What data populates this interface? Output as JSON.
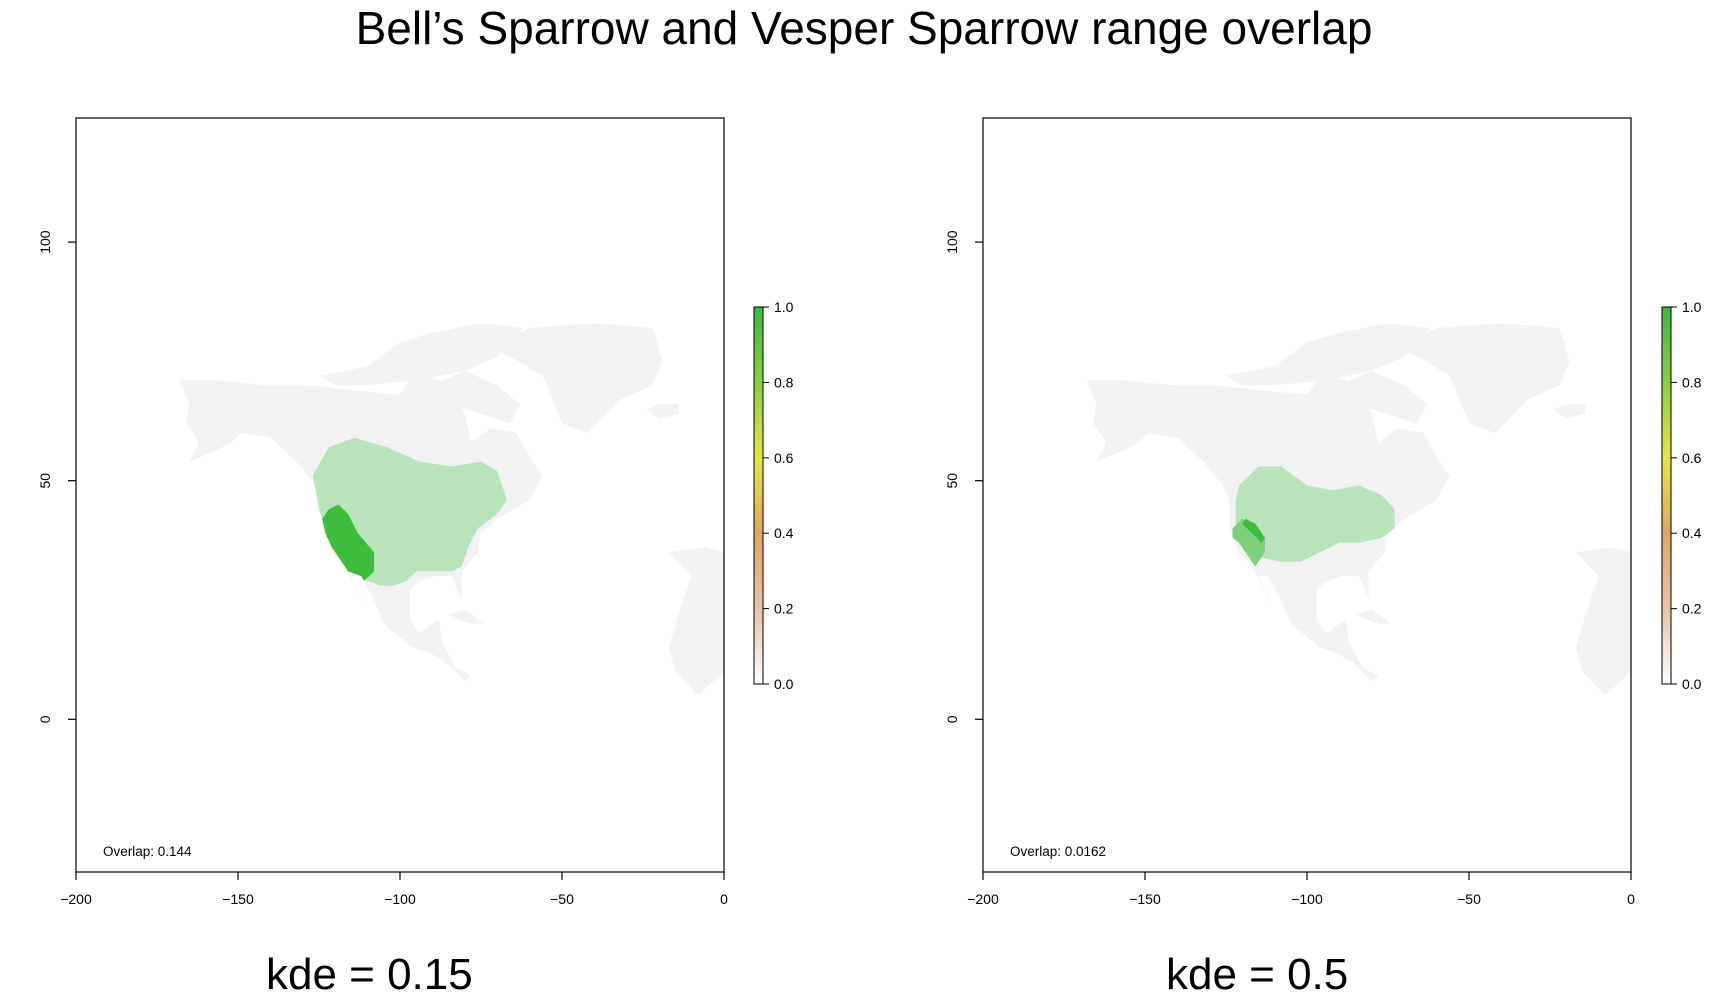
{
  "title": "Bell’s Sparrow and Vesper Sparrow range overlap",
  "colors": {
    "background_land": "#f2f2f2",
    "low_overlap_green": "#b9e4bb",
    "mid_overlap_green": "#7ed07f",
    "high_overlap_green": "#3fbb3f",
    "colorbar_stops": [
      "#ffffff",
      "#e8c2a9",
      "#e0a562",
      "#e6e545",
      "#8ccc47",
      "#3fb73f"
    ]
  },
  "chart_data": [
    {
      "type": "heatmap",
      "caption": "kde = 0.15",
      "annotation": "Overlap: 0.144",
      "xlim": [
        -200,
        0
      ],
      "ylim": [
        -32,
        126
      ],
      "x_ticks": [
        -200,
        -150,
        -100,
        -50,
        0
      ],
      "x_tick_labels": [
        "−200",
        "−150",
        "−100",
        "−50",
        "0"
      ],
      "y_ticks": [
        0,
        50,
        100
      ],
      "y_tick_labels": [
        "0",
        "50",
        "100"
      ],
      "colorbar": {
        "range": [
          0,
          1
        ],
        "ticks": [
          0.0,
          0.2,
          0.4,
          0.6,
          0.8,
          1.0
        ],
        "tick_labels": [
          "0.0",
          "0.2",
          "0.4",
          "0.6",
          "0.8",
          "1.0"
        ]
      },
      "regions": [
        {
          "value": 0.3,
          "polygon": [
            [
              -127,
              51
            ],
            [
              -122,
              57
            ],
            [
              -114,
              59
            ],
            [
              -104,
              57
            ],
            [
              -94,
              54
            ],
            [
              -84,
              53
            ],
            [
              -75,
              54
            ],
            [
              -70,
              52
            ],
            [
              -67,
              46
            ],
            [
              -70,
              43
            ],
            [
              -76,
              40
            ],
            [
              -79,
              36
            ],
            [
              -81,
              32
            ],
            [
              -84,
              31
            ],
            [
              -90,
              31
            ],
            [
              -95,
              31
            ],
            [
              -98,
              29
            ],
            [
              -102,
              28
            ],
            [
              -106,
              28
            ],
            [
              -110,
              29
            ],
            [
              -114,
              33
            ],
            [
              -119,
              36
            ],
            [
              -123,
              40
            ],
            [
              -125,
              44
            ],
            [
              -126,
              48
            ]
          ]
        },
        {
          "value": 0.9,
          "polygon": [
            [
              -124,
              42
            ],
            [
              -122,
              44
            ],
            [
              -119,
              45
            ],
            [
              -116,
              43
            ],
            [
              -113,
              39
            ],
            [
              -108,
              35
            ],
            [
              -108,
              31
            ],
            [
              -111,
              29
            ],
            [
              -112,
              30
            ],
            [
              -116,
              31
            ],
            [
              -119,
              34
            ],
            [
              -121,
              36
            ],
            [
              -123,
              39
            ]
          ]
        }
      ]
    },
    {
      "type": "heatmap",
      "caption": "kde = 0.5",
      "annotation": "Overlap: 0.0162",
      "xlim": [
        -200,
        0
      ],
      "ylim": [
        -32,
        126
      ],
      "x_ticks": [
        -200,
        -150,
        -100,
        -50,
        0
      ],
      "x_tick_labels": [
        "−200",
        "−150",
        "−100",
        "−50",
        "0"
      ],
      "y_ticks": [
        0,
        50,
        100
      ],
      "y_tick_labels": [
        "0",
        "50",
        "100"
      ],
      "colorbar": {
        "range": [
          0,
          1
        ],
        "ticks": [
          0.0,
          0.2,
          0.4,
          0.6,
          0.8,
          1.0
        ],
        "tick_labels": [
          "0.0",
          "0.2",
          "0.4",
          "0.6",
          "0.8",
          "1.0"
        ]
      },
      "regions": [
        {
          "value": 0.3,
          "polygon": [
            [
              -121,
              49
            ],
            [
              -115,
              53
            ],
            [
              -108,
              53
            ],
            [
              -100,
              49
            ],
            [
              -92,
              48
            ],
            [
              -84,
              49
            ],
            [
              -77,
              47
            ],
            [
              -73,
              44
            ],
            [
              -73,
              40
            ],
            [
              -77,
              38
            ],
            [
              -84,
              37
            ],
            [
              -90,
              37
            ],
            [
              -96,
              35
            ],
            [
              -102,
              33
            ],
            [
              -108,
              33
            ],
            [
              -115,
              34
            ],
            [
              -119,
              37
            ],
            [
              -122,
              41
            ],
            [
              -122,
              46
            ]
          ]
        },
        {
          "value": 0.6,
          "polygon": [
            [
              -123,
              40
            ],
            [
              -120,
              42
            ],
            [
              -117,
              41
            ],
            [
              -113,
              38
            ],
            [
              -113,
              35
            ],
            [
              -116,
              32
            ],
            [
              -118,
              34
            ],
            [
              -121,
              37
            ],
            [
              -123,
              38
            ]
          ]
        },
        {
          "value": 0.9,
          "polygon": [
            [
              -119,
              42
            ],
            [
              -116,
              41
            ],
            [
              -113,
              38
            ],
            [
              -114,
              37
            ],
            [
              -117,
              39
            ],
            [
              -120,
              41
            ]
          ]
        }
      ]
    }
  ],
  "land_polygons": [
    {
      "name": "north-america-mainland",
      "polygon": [
        [
          -168,
          71
        ],
        [
          -157,
          71
        ],
        [
          -141,
          70
        ],
        [
          -128,
          70
        ],
        [
          -115,
          69
        ],
        [
          -100,
          68
        ],
        [
          -95,
          73
        ],
        [
          -85,
          70
        ],
        [
          -80,
          64
        ],
        [
          -78,
          58
        ],
        [
          -72,
          61
        ],
        [
          -64,
          60
        ],
        [
          -60,
          55
        ],
        [
          -56,
          51
        ],
        [
          -60,
          46
        ],
        [
          -65,
          44
        ],
        [
          -70,
          42
        ],
        [
          -75,
          39
        ],
        [
          -76,
          35
        ],
        [
          -81,
          31
        ],
        [
          -81,
          25
        ],
        [
          -84,
          30
        ],
        [
          -89,
          30
        ],
        [
          -94,
          29
        ],
        [
          -97,
          27
        ],
        [
          -97,
          21
        ],
        [
          -94,
          18
        ],
        [
          -88,
          21
        ],
        [
          -87,
          16
        ],
        [
          -83,
          11
        ],
        [
          -78,
          9
        ],
        [
          -80,
          8
        ],
        [
          -86,
          12
        ],
        [
          -91,
          14
        ],
        [
          -96,
          15
        ],
        [
          -105,
          20
        ],
        [
          -108,
          25
        ],
        [
          -112,
          30
        ],
        [
          -115,
          30
        ],
        [
          -110,
          23
        ],
        [
          -117,
          32
        ],
        [
          -121,
          35
        ],
        [
          -124,
          40
        ],
        [
          -124,
          46
        ],
        [
          -126,
          49
        ],
        [
          -132,
          54
        ],
        [
          -140,
          59
        ],
        [
          -149,
          60
        ],
        [
          -152,
          58
        ],
        [
          -158,
          56
        ],
        [
          -165,
          54
        ],
        [
          -162,
          58
        ],
        [
          -166,
          62
        ],
        [
          -165,
          66
        ]
      ]
    },
    {
      "name": "canadian-arctic-islands",
      "polygon": [
        [
          -125,
          72
        ],
        [
          -110,
          74
        ],
        [
          -100,
          79
        ],
        [
          -90,
          81
        ],
        [
          -75,
          83
        ],
        [
          -62,
          82
        ],
        [
          -70,
          76
        ],
        [
          -80,
          73
        ],
        [
          -95,
          71
        ],
        [
          -110,
          70
        ],
        [
          -120,
          70
        ]
      ]
    },
    {
      "name": "baffin-island",
      "polygon": [
        [
          -90,
          70
        ],
        [
          -80,
          73
        ],
        [
          -70,
          70
        ],
        [
          -63,
          66
        ],
        [
          -66,
          62
        ],
        [
          -75,
          64
        ],
        [
          -85,
          66
        ]
      ]
    },
    {
      "name": "greenland",
      "polygon": [
        [
          -73,
          78
        ],
        [
          -60,
          82
        ],
        [
          -40,
          83
        ],
        [
          -22,
          82
        ],
        [
          -19,
          75
        ],
        [
          -22,
          70
        ],
        [
          -32,
          67
        ],
        [
          -42,
          60
        ],
        [
          -50,
          62
        ],
        [
          -53,
          67
        ],
        [
          -56,
          72
        ],
        [
          -66,
          76
        ]
      ]
    },
    {
      "name": "cuba",
      "polygon": [
        [
          -85,
          22
        ],
        [
          -80,
          23
        ],
        [
          -74,
          20
        ],
        [
          -78,
          20
        ],
        [
          -82,
          21
        ]
      ]
    },
    {
      "name": "west-africa",
      "polygon": [
        [
          -17,
          35
        ],
        [
          -6,
          36
        ],
        [
          0,
          35
        ],
        [
          0,
          10
        ],
        [
          -8,
          5
        ],
        [
          -15,
          10
        ],
        [
          -17,
          15
        ],
        [
          -14,
          22
        ],
        [
          -10,
          30
        ]
      ]
    },
    {
      "name": "iceland",
      "polygon": [
        [
          -24,
          65
        ],
        [
          -20,
          66
        ],
        [
          -14,
          66
        ],
        [
          -14,
          64
        ],
        [
          -20,
          63
        ]
      ]
    }
  ]
}
